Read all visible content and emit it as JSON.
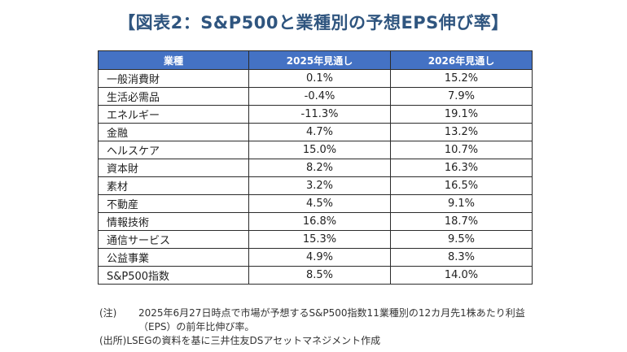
{
  "title": "【図表2：S&P500と業種別の予想EPS伸び率】",
  "table": {
    "headers": [
      "業種",
      "2025年見通し",
      "2026年見通し"
    ],
    "rows": [
      {
        "sector": "一般消費財",
        "y2025": "0.1%",
        "y2026": "15.2%"
      },
      {
        "sector": "生活必需品",
        "y2025": "-0.4%",
        "y2026": "7.9%"
      },
      {
        "sector": "エネルギー",
        "y2025": "-11.3%",
        "y2026": "19.1%"
      },
      {
        "sector": "金融",
        "y2025": "4.7%",
        "y2026": "13.2%"
      },
      {
        "sector": "ヘルスケア",
        "y2025": "15.0%",
        "y2026": "10.7%"
      },
      {
        "sector": "資本財",
        "y2025": "8.2%",
        "y2026": "16.3%"
      },
      {
        "sector": "素材",
        "y2025": "3.2%",
        "y2026": "16.5%"
      },
      {
        "sector": "不動産",
        "y2025": "4.5%",
        "y2026": "9.1%"
      },
      {
        "sector": "情報技術",
        "y2025": "16.8%",
        "y2026": "18.7%"
      },
      {
        "sector": "通信サービス",
        "y2025": "15.3%",
        "y2026": "9.5%"
      },
      {
        "sector": "公益事業",
        "y2025": "4.9%",
        "y2026": "8.3%"
      },
      {
        "sector": "S&P500指数",
        "y2025": "8.5%",
        "y2026": "14.0%"
      }
    ]
  },
  "notes": {
    "note_label": "(注)",
    "note_text": "2025年6月27日時点で市場が予想するS&P500指数11業種別の12カ月先1株あたり利益（EPS）の前年比伸び率。",
    "source_label": "(出所)",
    "source_text": "LSEGの資料を基に三井住友DSアセットマネジメント作成"
  },
  "colors": {
    "title": "#2f557f",
    "header_bg": "#4472c4",
    "header_text": "#ffffff",
    "border": "#2b2b2b"
  }
}
